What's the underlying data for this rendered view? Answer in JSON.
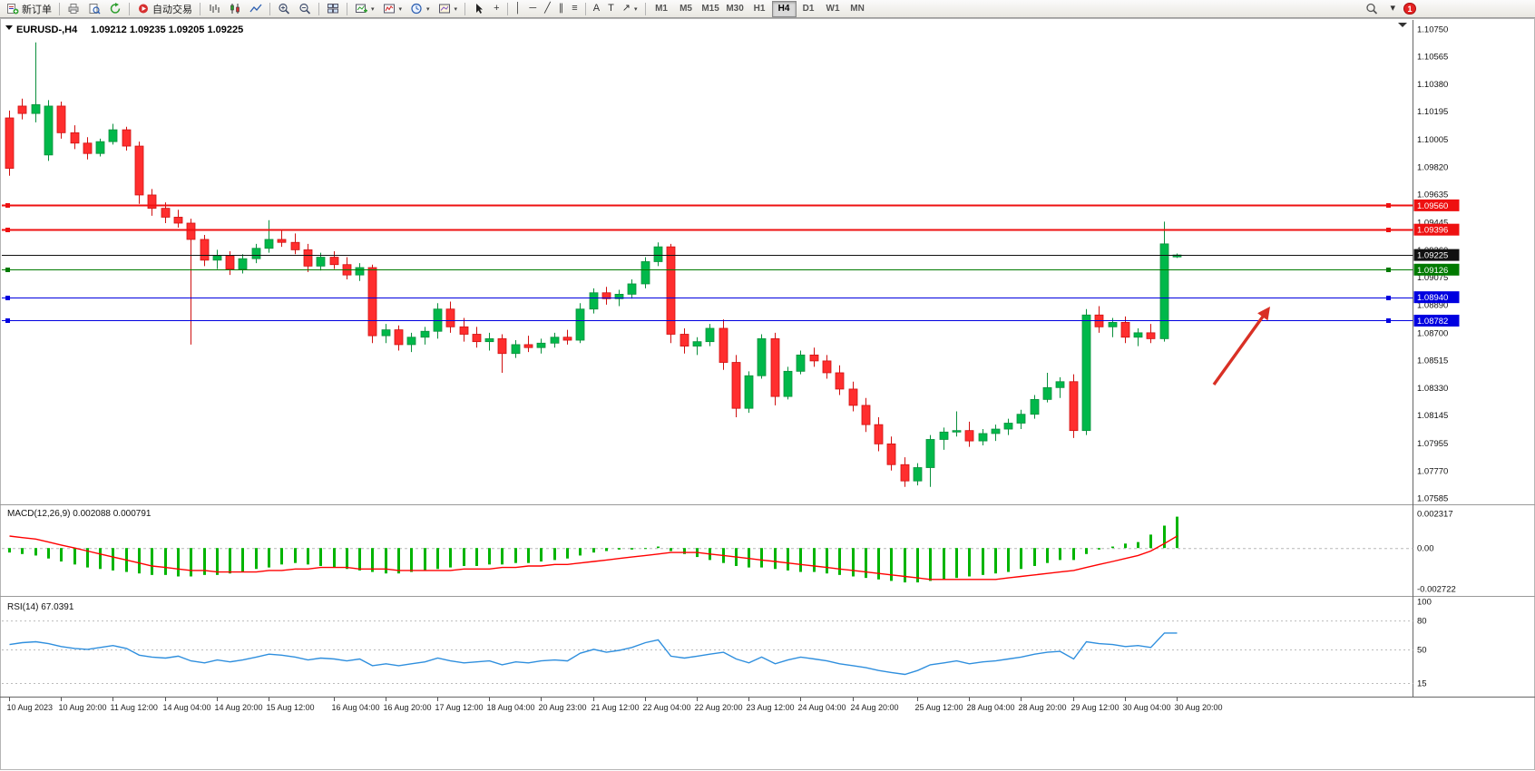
{
  "toolbar": {
    "new_order_label": "新订单",
    "autotrade_label": "自动交易",
    "timeframes": [
      "M1",
      "M5",
      "M15",
      "M30",
      "H1",
      "H4",
      "D1",
      "W1",
      "MN"
    ],
    "active_timeframe": "H4",
    "notification_badge": "1"
  },
  "icons": {
    "crosshair": "+",
    "vline": "│",
    "hline": "─",
    "trendline": "╱",
    "channel": "∥",
    "fibo": "≡",
    "text": "A",
    "label": "T",
    "arrows": "↗",
    "caret": "▾",
    "quick_jump": "▾"
  },
  "chart": {
    "title": "EURUSD-,H4",
    "ohlc": "1.09212 1.09235 1.09205 1.09225",
    "price_ticks": [
      "1.10750",
      "1.10565",
      "1.10380",
      "1.10195",
      "1.10005",
      "1.09820",
      "1.09635",
      "1.09445",
      "1.09260",
      "1.09075",
      "1.08890",
      "1.08700",
      "1.08515",
      "1.08330",
      "1.08145",
      "1.07955",
      "1.07770",
      "1.07585"
    ],
    "hlines": [
      {
        "price": 1.0956,
        "label": "1.09560",
        "color": "#ee1111",
        "width": 2,
        "handles": true
      },
      {
        "price": 1.09396,
        "label": "1.09396",
        "color": "#ee1111",
        "width": 2,
        "handles": true
      },
      {
        "price": 1.09225,
        "label": "1.09225",
        "color": "#111111",
        "width": 1,
        "handles": false
      },
      {
        "price": 1.09126,
        "label": "1.09126",
        "color": "#007a00",
        "width": 1.4,
        "handles": true
      },
      {
        "price": 1.0894,
        "label": "1.08940",
        "color": "#0000e0",
        "width": 1.4,
        "handles": true
      },
      {
        "price": 1.08782,
        "label": "1.08782",
        "color": "#0000e0",
        "width": 1.4,
        "handles": true
      }
    ],
    "candles": [
      [
        1.1015,
        1.102,
        1.0976,
        1.0981
      ],
      [
        1.1023,
        1.1028,
        1.1014,
        1.1018
      ],
      [
        1.1018,
        1.1066,
        1.1012,
        1.1024
      ],
      [
        1.099,
        1.1027,
        1.0986,
        1.1023
      ],
      [
        1.1023,
        1.1026,
        1.1001,
        1.1005
      ],
      [
        1.1005,
        1.101,
        1.0994,
        1.0998
      ],
      [
        1.0998,
        1.1002,
        1.0987,
        1.0991
      ],
      [
        1.0991,
        1.1001,
        1.0989,
        1.0999
      ],
      [
        1.0999,
        1.1011,
        1.0997,
        1.1007
      ],
      [
        1.1007,
        1.1009,
        1.0993,
        1.0996
      ],
      [
        1.0996,
        1.0999,
        1.0957,
        1.0963
      ],
      [
        1.0963,
        1.0967,
        1.0949,
        1.0954
      ],
      [
        1.0954,
        1.0958,
        1.0944,
        1.0948
      ],
      [
        1.0948,
        1.0953,
        1.0941,
        1.0944
      ],
      [
        1.0944,
        1.0947,
        1.0862,
        1.0933
      ],
      [
        1.0933,
        1.0936,
        1.0915,
        1.0919
      ],
      [
        1.0919,
        1.0926,
        1.0913,
        1.0922
      ],
      [
        1.0922,
        1.0925,
        1.0909,
        1.0913
      ],
      [
        1.0913,
        1.0923,
        1.091,
        1.092
      ],
      [
        1.092,
        1.093,
        1.0917,
        1.0927
      ],
      [
        1.0927,
        1.0946,
        1.0924,
        1.0933
      ],
      [
        1.0933,
        1.094,
        1.0928,
        1.0931
      ],
      [
        1.0931,
        1.0937,
        1.0923,
        1.0926
      ],
      [
        1.0926,
        1.093,
        1.0911,
        1.0915
      ],
      [
        1.0915,
        1.0924,
        1.0912,
        1.0921
      ],
      [
        1.0921,
        1.0925,
        1.0913,
        1.0916
      ],
      [
        1.0916,
        1.0921,
        1.0906,
        1.0909
      ],
      [
        1.0909,
        1.0917,
        1.0905,
        1.0914
      ],
      [
        1.0914,
        1.0916,
        1.0863,
        1.0868
      ],
      [
        1.0868,
        1.0876,
        1.0863,
        1.0872
      ],
      [
        1.0872,
        1.0875,
        1.0858,
        1.0862
      ],
      [
        1.0862,
        1.087,
        1.0857,
        1.0867
      ],
      [
        1.0867,
        1.0874,
        1.0862,
        1.0871
      ],
      [
        1.0871,
        1.089,
        1.0866,
        1.0886
      ],
      [
        1.0886,
        1.0891,
        1.087,
        1.0874
      ],
      [
        1.0874,
        1.088,
        1.0864,
        1.0869
      ],
      [
        1.0869,
        1.0874,
        1.086,
        1.0864
      ],
      [
        1.0864,
        1.087,
        1.0858,
        1.0866
      ],
      [
        1.0866,
        1.0869,
        1.0843,
        1.0856
      ],
      [
        1.0856,
        1.0865,
        1.0853,
        1.0862
      ],
      [
        1.0862,
        1.0868,
        1.0857,
        1.086
      ],
      [
        1.086,
        1.0866,
        1.0856,
        1.0863
      ],
      [
        1.0863,
        1.087,
        1.086,
        1.0867
      ],
      [
        1.0867,
        1.0872,
        1.0862,
        1.0865
      ],
      [
        1.0865,
        1.089,
        1.0863,
        1.0886
      ],
      [
        1.0886,
        1.09,
        1.0883,
        1.0897
      ],
      [
        1.0897,
        1.0901,
        1.0889,
        1.0893
      ],
      [
        1.0893,
        1.0899,
        1.0888,
        1.0896
      ],
      [
        1.0896,
        1.0906,
        1.0893,
        1.0903
      ],
      [
        1.0903,
        1.0921,
        1.09,
        1.0918
      ],
      [
        1.0918,
        1.0931,
        1.0915,
        1.0928
      ],
      [
        1.0928,
        1.093,
        1.0863,
        1.0869
      ],
      [
        1.0869,
        1.0873,
        1.0856,
        1.0861
      ],
      [
        1.0861,
        1.0867,
        1.0855,
        1.0864
      ],
      [
        1.0864,
        1.0876,
        1.0861,
        1.0873
      ],
      [
        1.0873,
        1.0879,
        1.0845,
        1.085
      ],
      [
        1.085,
        1.0855,
        1.0813,
        1.0819
      ],
      [
        1.0819,
        1.0844,
        1.0816,
        1.0841
      ],
      [
        1.0841,
        1.0869,
        1.0839,
        1.0866
      ],
      [
        1.0866,
        1.087,
        1.0821,
        1.0827
      ],
      [
        1.0827,
        1.0847,
        1.0825,
        1.0844
      ],
      [
        1.0844,
        1.0858,
        1.0842,
        1.0855
      ],
      [
        1.0855,
        1.086,
        1.0847,
        1.0851
      ],
      [
        1.0851,
        1.0855,
        1.0839,
        1.0843
      ],
      [
        1.0843,
        1.0848,
        1.0828,
        1.0832
      ],
      [
        1.0832,
        1.0837,
        1.0817,
        1.0821
      ],
      [
        1.0821,
        1.0826,
        1.0803,
        1.0808
      ],
      [
        1.0808,
        1.0813,
        1.079,
        1.0795
      ],
      [
        1.0795,
        1.08,
        1.0777,
        1.0781
      ],
      [
        1.0781,
        1.0786,
        1.0766,
        1.077
      ],
      [
        1.077,
        1.0782,
        1.0767,
        1.0779
      ],
      [
        1.0779,
        1.0801,
        1.0766,
        1.0798
      ],
      [
        1.0798,
        1.0806,
        1.0791,
        1.0803
      ],
      [
        1.0803,
        1.0817,
        1.08,
        1.0804
      ],
      [
        1.0804,
        1.081,
        1.0793,
        1.0797
      ],
      [
        1.0797,
        1.0805,
        1.0794,
        1.0802
      ],
      [
        1.0802,
        1.0808,
        1.0797,
        1.0805
      ],
      [
        1.0805,
        1.0812,
        1.0801,
        1.0809
      ],
      [
        1.0809,
        1.0818,
        1.0805,
        1.0815
      ],
      [
        1.0815,
        1.0828,
        1.0812,
        1.0825
      ],
      [
        1.0825,
        1.0843,
        1.0823,
        1.0833
      ],
      [
        1.0833,
        1.084,
        1.0826,
        1.0837
      ],
      [
        1.0837,
        1.0842,
        1.0799,
        1.0804
      ],
      [
        1.0804,
        1.0886,
        1.0801,
        1.0882
      ],
      [
        1.0882,
        1.0888,
        1.087,
        1.0874
      ],
      [
        1.0874,
        1.088,
        1.0867,
        1.0877
      ],
      [
        1.0877,
        1.0881,
        1.0863,
        1.0867
      ],
      [
        1.0867,
        1.0873,
        1.0861,
        1.087
      ],
      [
        1.087,
        1.0876,
        1.0863,
        1.0866
      ],
      [
        1.0866,
        1.0945,
        1.0864,
        1.093
      ],
      [
        1.09212,
        1.09235,
        1.09205,
        1.09225
      ]
    ],
    "axis_range": {
      "top": 1.1075,
      "bottom": 1.07585
    }
  },
  "macd": {
    "label": "MACD(12,26,9) 0.002088 0.000791",
    "scale_labels": [
      "0.002317",
      "0.00",
      "-0.002722"
    ],
    "scale_values": [
      0.002317,
      0,
      -0.002722
    ],
    "unit": 0.0001,
    "histogram": [
      -3,
      -4,
      -5,
      -7,
      -9,
      -11,
      -13,
      -14,
      -15,
      -16,
      -17,
      -18,
      -18,
      -19,
      -19,
      -18,
      -18,
      -17,
      -16,
      -14,
      -13,
      -11,
      -10,
      -11,
      -12,
      -13,
      -14,
      -15,
      -16,
      -17,
      -17,
      -16,
      -15,
      -14,
      -13,
      -12,
      -12,
      -11,
      -11,
      -10,
      -10,
      -9,
      -8,
      -7,
      -5,
      -3,
      -2,
      -1,
      -1,
      0,
      1,
      -2,
      -4,
      -6,
      -8,
      -10,
      -12,
      -13,
      -13,
      -14,
      -15,
      -16,
      -16,
      -17,
      -18,
      -19,
      -20,
      -21,
      -22,
      -23,
      -23,
      -22,
      -21,
      -20,
      -19,
      -18,
      -17,
      -16,
      -14,
      -12,
      -10,
      -8,
      -8,
      -4,
      -1,
      1,
      3,
      4,
      9,
      15,
      21
    ],
    "signal": [
      8,
      7,
      6,
      4,
      2,
      0,
      -2,
      -4,
      -6,
      -8,
      -10,
      -12,
      -13,
      -14,
      -15,
      -15,
      -16,
      -16,
      -16,
      -16,
      -15,
      -15,
      -14,
      -14,
      -13,
      -13,
      -13,
      -14,
      -14,
      -14,
      -15,
      -15,
      -15,
      -15,
      -15,
      -14,
      -14,
      -14,
      -13,
      -13,
      -12,
      -12,
      -11,
      -11,
      -10,
      -9,
      -8,
      -7,
      -6,
      -5,
      -4,
      -3,
      -3,
      -3,
      -4,
      -5,
      -6,
      -7,
      -8,
      -9,
      -10,
      -11,
      -12,
      -13,
      -14,
      -15,
      -16,
      -17,
      -18,
      -19,
      -20,
      -21,
      -21,
      -21,
      -21,
      -21,
      -21,
      -20,
      -19,
      -18,
      -17,
      -16,
      -15,
      -13,
      -11,
      -9,
      -7,
      -5,
      -2,
      3,
      8
    ]
  },
  "rsi": {
    "label": "RSI(14) 67.0391",
    "levels": [
      "100",
      "80",
      "50",
      "15"
    ],
    "level_values": [
      100,
      80,
      50,
      15
    ],
    "values": [
      55,
      57,
      58,
      56,
      53,
      51,
      50,
      52,
      54,
      51,
      44,
      42,
      41,
      43,
      38,
      36,
      39,
      37,
      39,
      42,
      45,
      44,
      42,
      39,
      41,
      40,
      38,
      40,
      33,
      35,
      33,
      35,
      37,
      41,
      38,
      36,
      37,
      38,
      34,
      37,
      36,
      38,
      39,
      38,
      46,
      50,
      47,
      49,
      52,
      57,
      60,
      43,
      41,
      43,
      45,
      47,
      40,
      36,
      42,
      35,
      39,
      42,
      40,
      38,
      35,
      33,
      31,
      28,
      26,
      24,
      28,
      34,
      36,
      38,
      35,
      37,
      38,
      40,
      42,
      45,
      47,
      48,
      40,
      58,
      56,
      55,
      53,
      54,
      52,
      67,
      67.0391
    ]
  },
  "time_axis": [
    "10 Aug 2023",
    "10 Aug 20:00",
    "11 Aug 12:00",
    "14 Aug 04:00",
    "14 Aug 20:00",
    "15 Aug 12:00",
    "16 Aug 04:00",
    "16 Aug 20:00",
    "17 Aug 12:00",
    "18 Aug 04:00",
    "20 Aug 23:00",
    "21 Aug 12:00",
    "22 Aug 04:00",
    "22 Aug 20:00",
    "23 Aug 12:00",
    "24 Aug 04:00",
    "24 Aug 20:00",
    "25 Aug 12:00",
    "28 Aug 04:00",
    "28 Aug 20:00",
    "29 Aug 12:00",
    "30 Aug 04:00",
    "30 Aug 20:00"
  ],
  "colors": {
    "up_fill": "#00b84a",
    "up_border": "#0a8f3c",
    "down_fill": "#ff2e2e",
    "down_border": "#cf1010",
    "macd_hist": "#00b400",
    "macd_signal": "#ff0000",
    "rsi_line": "#2f8fde",
    "arrow": "#d93025",
    "label_red": "#ee1111",
    "label_black": "#111111",
    "label_green": "#007a00",
    "label_blue": "#0000e0"
  }
}
